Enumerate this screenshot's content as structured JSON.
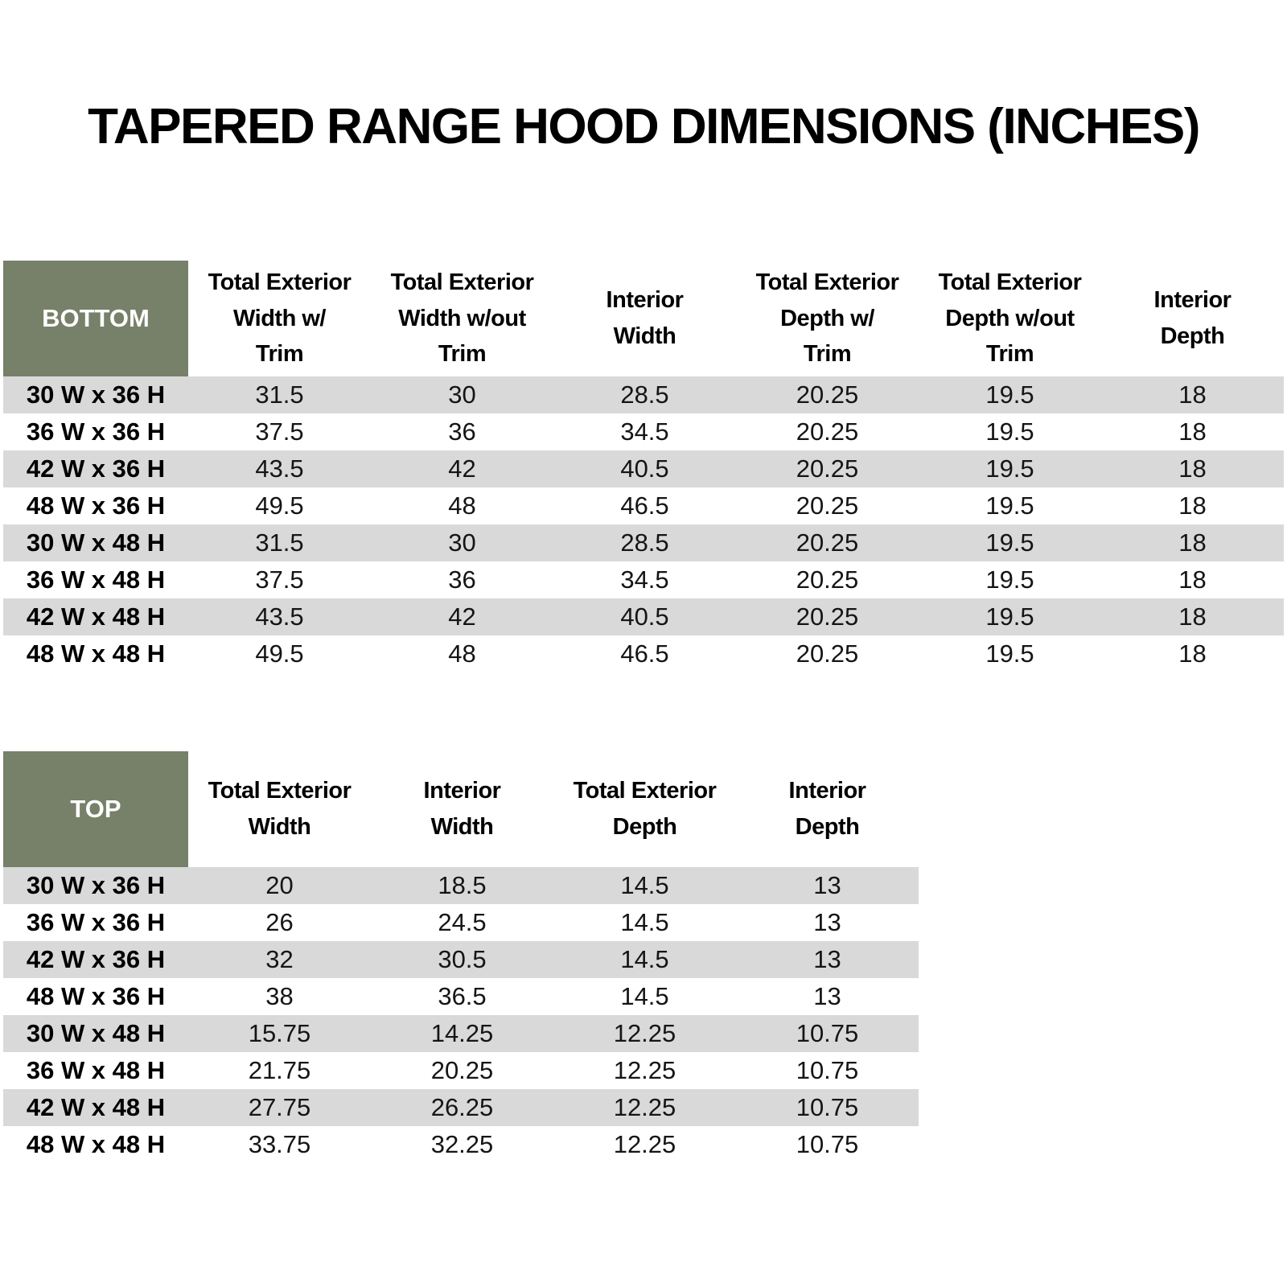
{
  "page": {
    "title": "TAPERED RANGE HOOD DIMENSIONS (INCHES)"
  },
  "colors": {
    "accent_green": "#778069",
    "row_gray": "#d9d9d9",
    "row_white": "#ffffff",
    "text_black": "#000000"
  },
  "bottom_table": {
    "corner_label": "BOTTOM",
    "columns": [
      "Total Exterior\nWidth w/\nTrim",
      "Total Exterior\nWidth w/out\nTrim",
      "Interior\nWidth",
      "Total Exterior\nDepth w/\nTrim",
      "Total Exterior\nDepth w/out\nTrim",
      "Interior\nDepth"
    ],
    "rows": [
      {
        "label": "30 W x 36 H",
        "values": [
          "31.5",
          "30",
          "28.5",
          "20.25",
          "19.5",
          "18"
        ]
      },
      {
        "label": "36 W x 36 H",
        "values": [
          "37.5",
          "36",
          "34.5",
          "20.25",
          "19.5",
          "18"
        ]
      },
      {
        "label": "42 W x 36 H",
        "values": [
          "43.5",
          "42",
          "40.5",
          "20.25",
          "19.5",
          "18"
        ]
      },
      {
        "label": "48 W x 36 H",
        "values": [
          "49.5",
          "48",
          "46.5",
          "20.25",
          "19.5",
          "18"
        ]
      },
      {
        "label": "30 W x 48 H",
        "values": [
          "31.5",
          "30",
          "28.5",
          "20.25",
          "19.5",
          "18"
        ]
      },
      {
        "label": "36 W x 48 H",
        "values": [
          "37.5",
          "36",
          "34.5",
          "20.25",
          "19.5",
          "18"
        ]
      },
      {
        "label": "42 W x 48 H",
        "values": [
          "43.5",
          "42",
          "40.5",
          "20.25",
          "19.5",
          "18"
        ]
      },
      {
        "label": "48 W x 48 H",
        "values": [
          "49.5",
          "48",
          "46.5",
          "20.25",
          "19.5",
          "18"
        ]
      }
    ]
  },
  "top_table": {
    "corner_label": "TOP",
    "columns": [
      "Total Exterior\nWidth",
      "Interior\nWidth",
      "Total Exterior\nDepth",
      "Interior\nDepth"
    ],
    "rows": [
      {
        "label": "30 W x 36 H",
        "values": [
          "20",
          "18.5",
          "14.5",
          "13"
        ]
      },
      {
        "label": "36 W x 36 H",
        "values": [
          "26",
          "24.5",
          "14.5",
          "13"
        ]
      },
      {
        "label": "42 W x 36 H",
        "values": [
          "32",
          "30.5",
          "14.5",
          "13"
        ]
      },
      {
        "label": "48 W x 36 H",
        "values": [
          "38",
          "36.5",
          "14.5",
          "13"
        ]
      },
      {
        "label": "30 W x 48 H",
        "values": [
          "15.75",
          "14.25",
          "12.25",
          "10.75"
        ]
      },
      {
        "label": "36 W x 48 H",
        "values": [
          "21.75",
          "20.25",
          "12.25",
          "10.75"
        ]
      },
      {
        "label": "42 W x 48 H",
        "values": [
          "27.75",
          "26.25",
          "12.25",
          "10.75"
        ]
      },
      {
        "label": "48 W x 48 H",
        "values": [
          "33.75",
          "32.25",
          "12.25",
          "10.75"
        ]
      }
    ]
  }
}
